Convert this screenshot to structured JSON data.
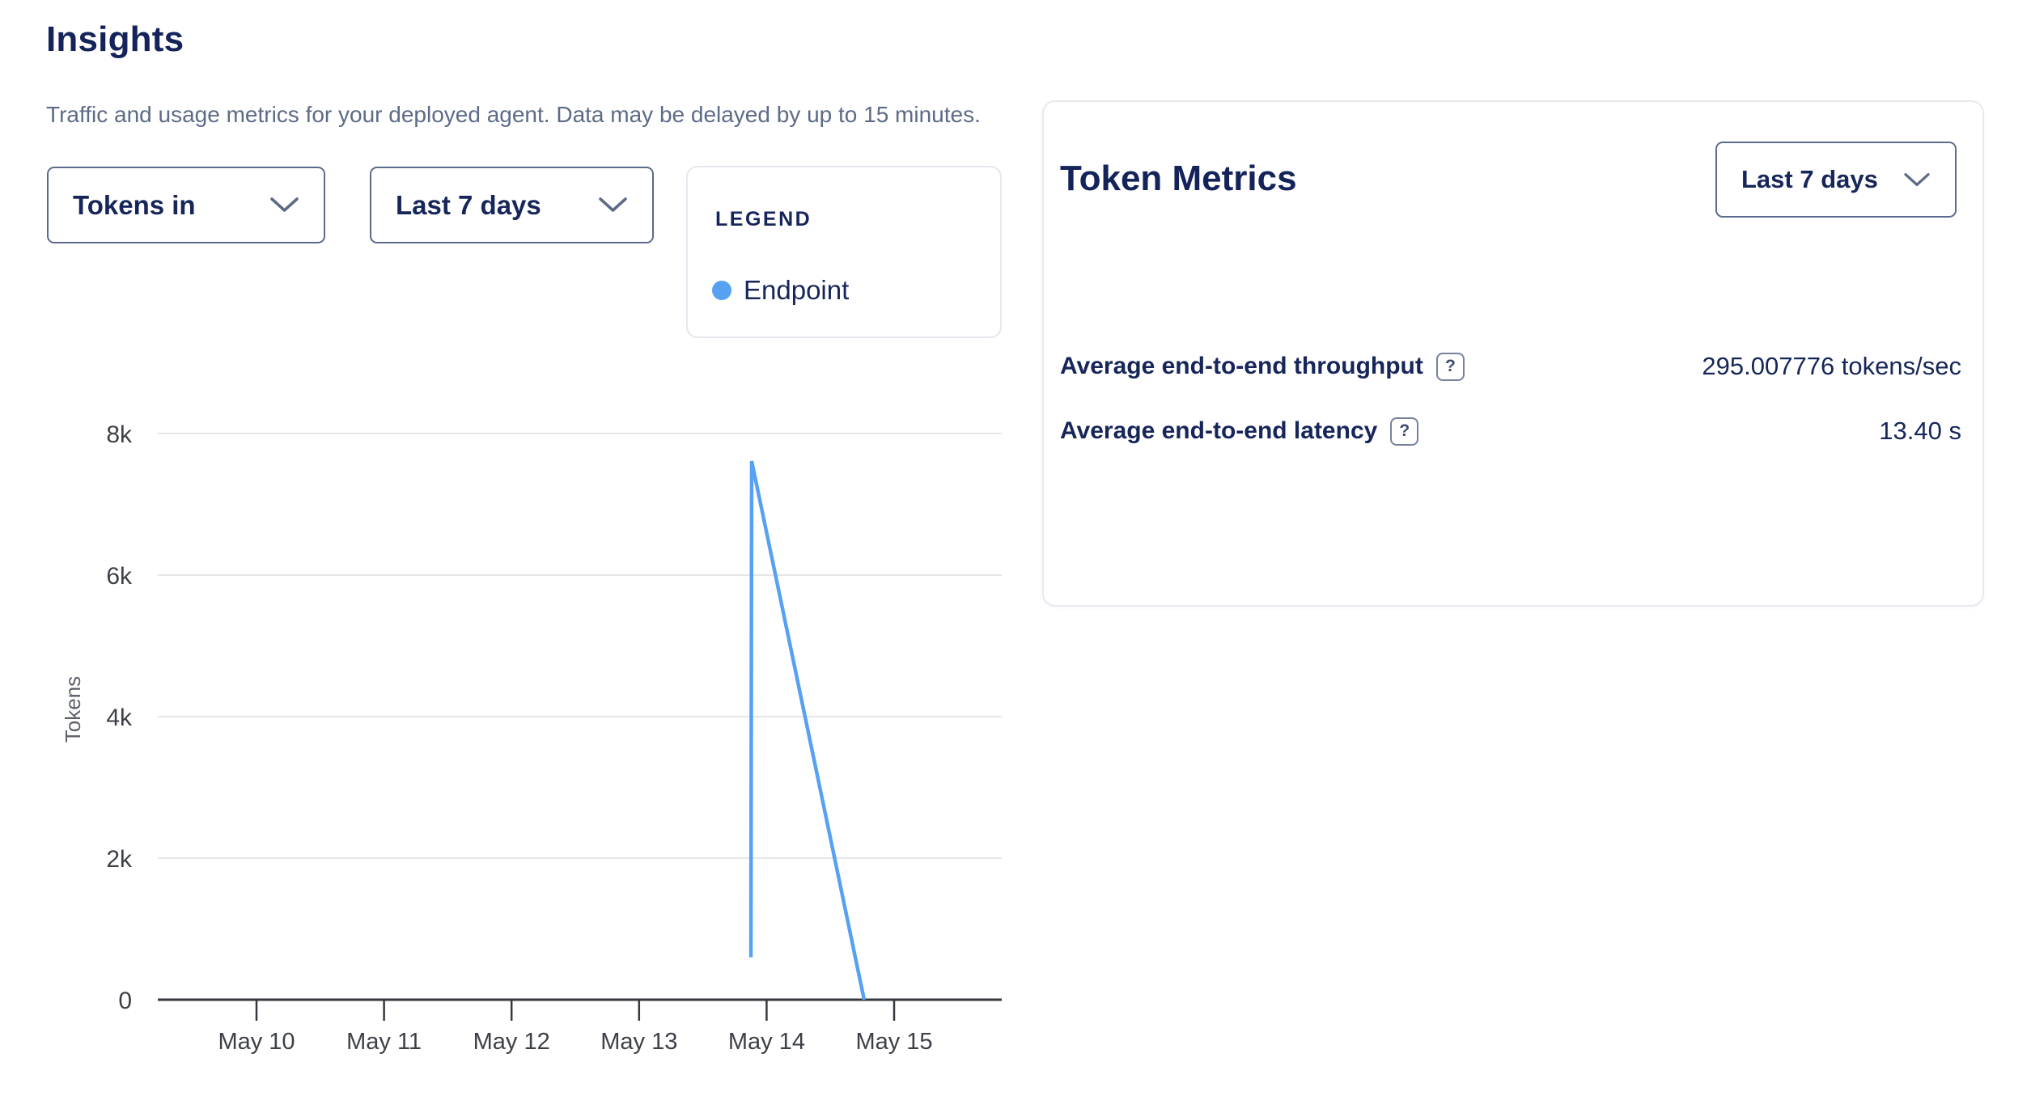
{
  "page": {
    "title": "Insights",
    "subtitle": "Traffic and usage metrics for your deployed agent. Data may be delayed by up to 15 minutes."
  },
  "controls": {
    "metric_select": {
      "value": "Tokens in"
    },
    "range_select": {
      "value": "Last 7 days"
    }
  },
  "legend": {
    "title": "LEGEND",
    "items": [
      {
        "label": "Endpoint",
        "color": "#57a1f2"
      }
    ]
  },
  "token_metrics": {
    "title": "Token Metrics",
    "range_select": {
      "value": "Last 7 days"
    },
    "help_glyph": "?",
    "rows": [
      {
        "label": "Average end-to-end throughput",
        "value": "295.007776 tokens/sec"
      },
      {
        "label": "Average end-to-end latency",
        "value": "13.40 s"
      }
    ]
  },
  "chart_data": {
    "type": "line",
    "title": "",
    "xlabel": "",
    "ylabel": "Tokens",
    "grid": true,
    "legend_position": "top",
    "ylim": [
      0,
      8000
    ],
    "yticks": [
      {
        "label": "0",
        "value": 0
      },
      {
        "label": "2k",
        "value": 2000
      },
      {
        "label": "4k",
        "value": 4000
      },
      {
        "label": "6k",
        "value": 6000
      },
      {
        "label": "8k",
        "value": 8000
      }
    ],
    "xticks": [
      {
        "label": "May 10",
        "day": 0
      },
      {
        "label": "May 11",
        "day": 1
      },
      {
        "label": "May 12",
        "day": 2
      },
      {
        "label": "May 13",
        "day": 3
      },
      {
        "label": "May 14",
        "day": 4
      },
      {
        "label": "May 15",
        "day": 5
      }
    ],
    "xlim_days": [
      -0.77,
      5.84
    ],
    "series": [
      {
        "name": "Endpoint",
        "color": "#57a1f2",
        "points": [
          [
            3.877,
            600
          ],
          [
            3.883,
            7610
          ],
          [
            4.765,
            0
          ]
        ]
      }
    ]
  }
}
